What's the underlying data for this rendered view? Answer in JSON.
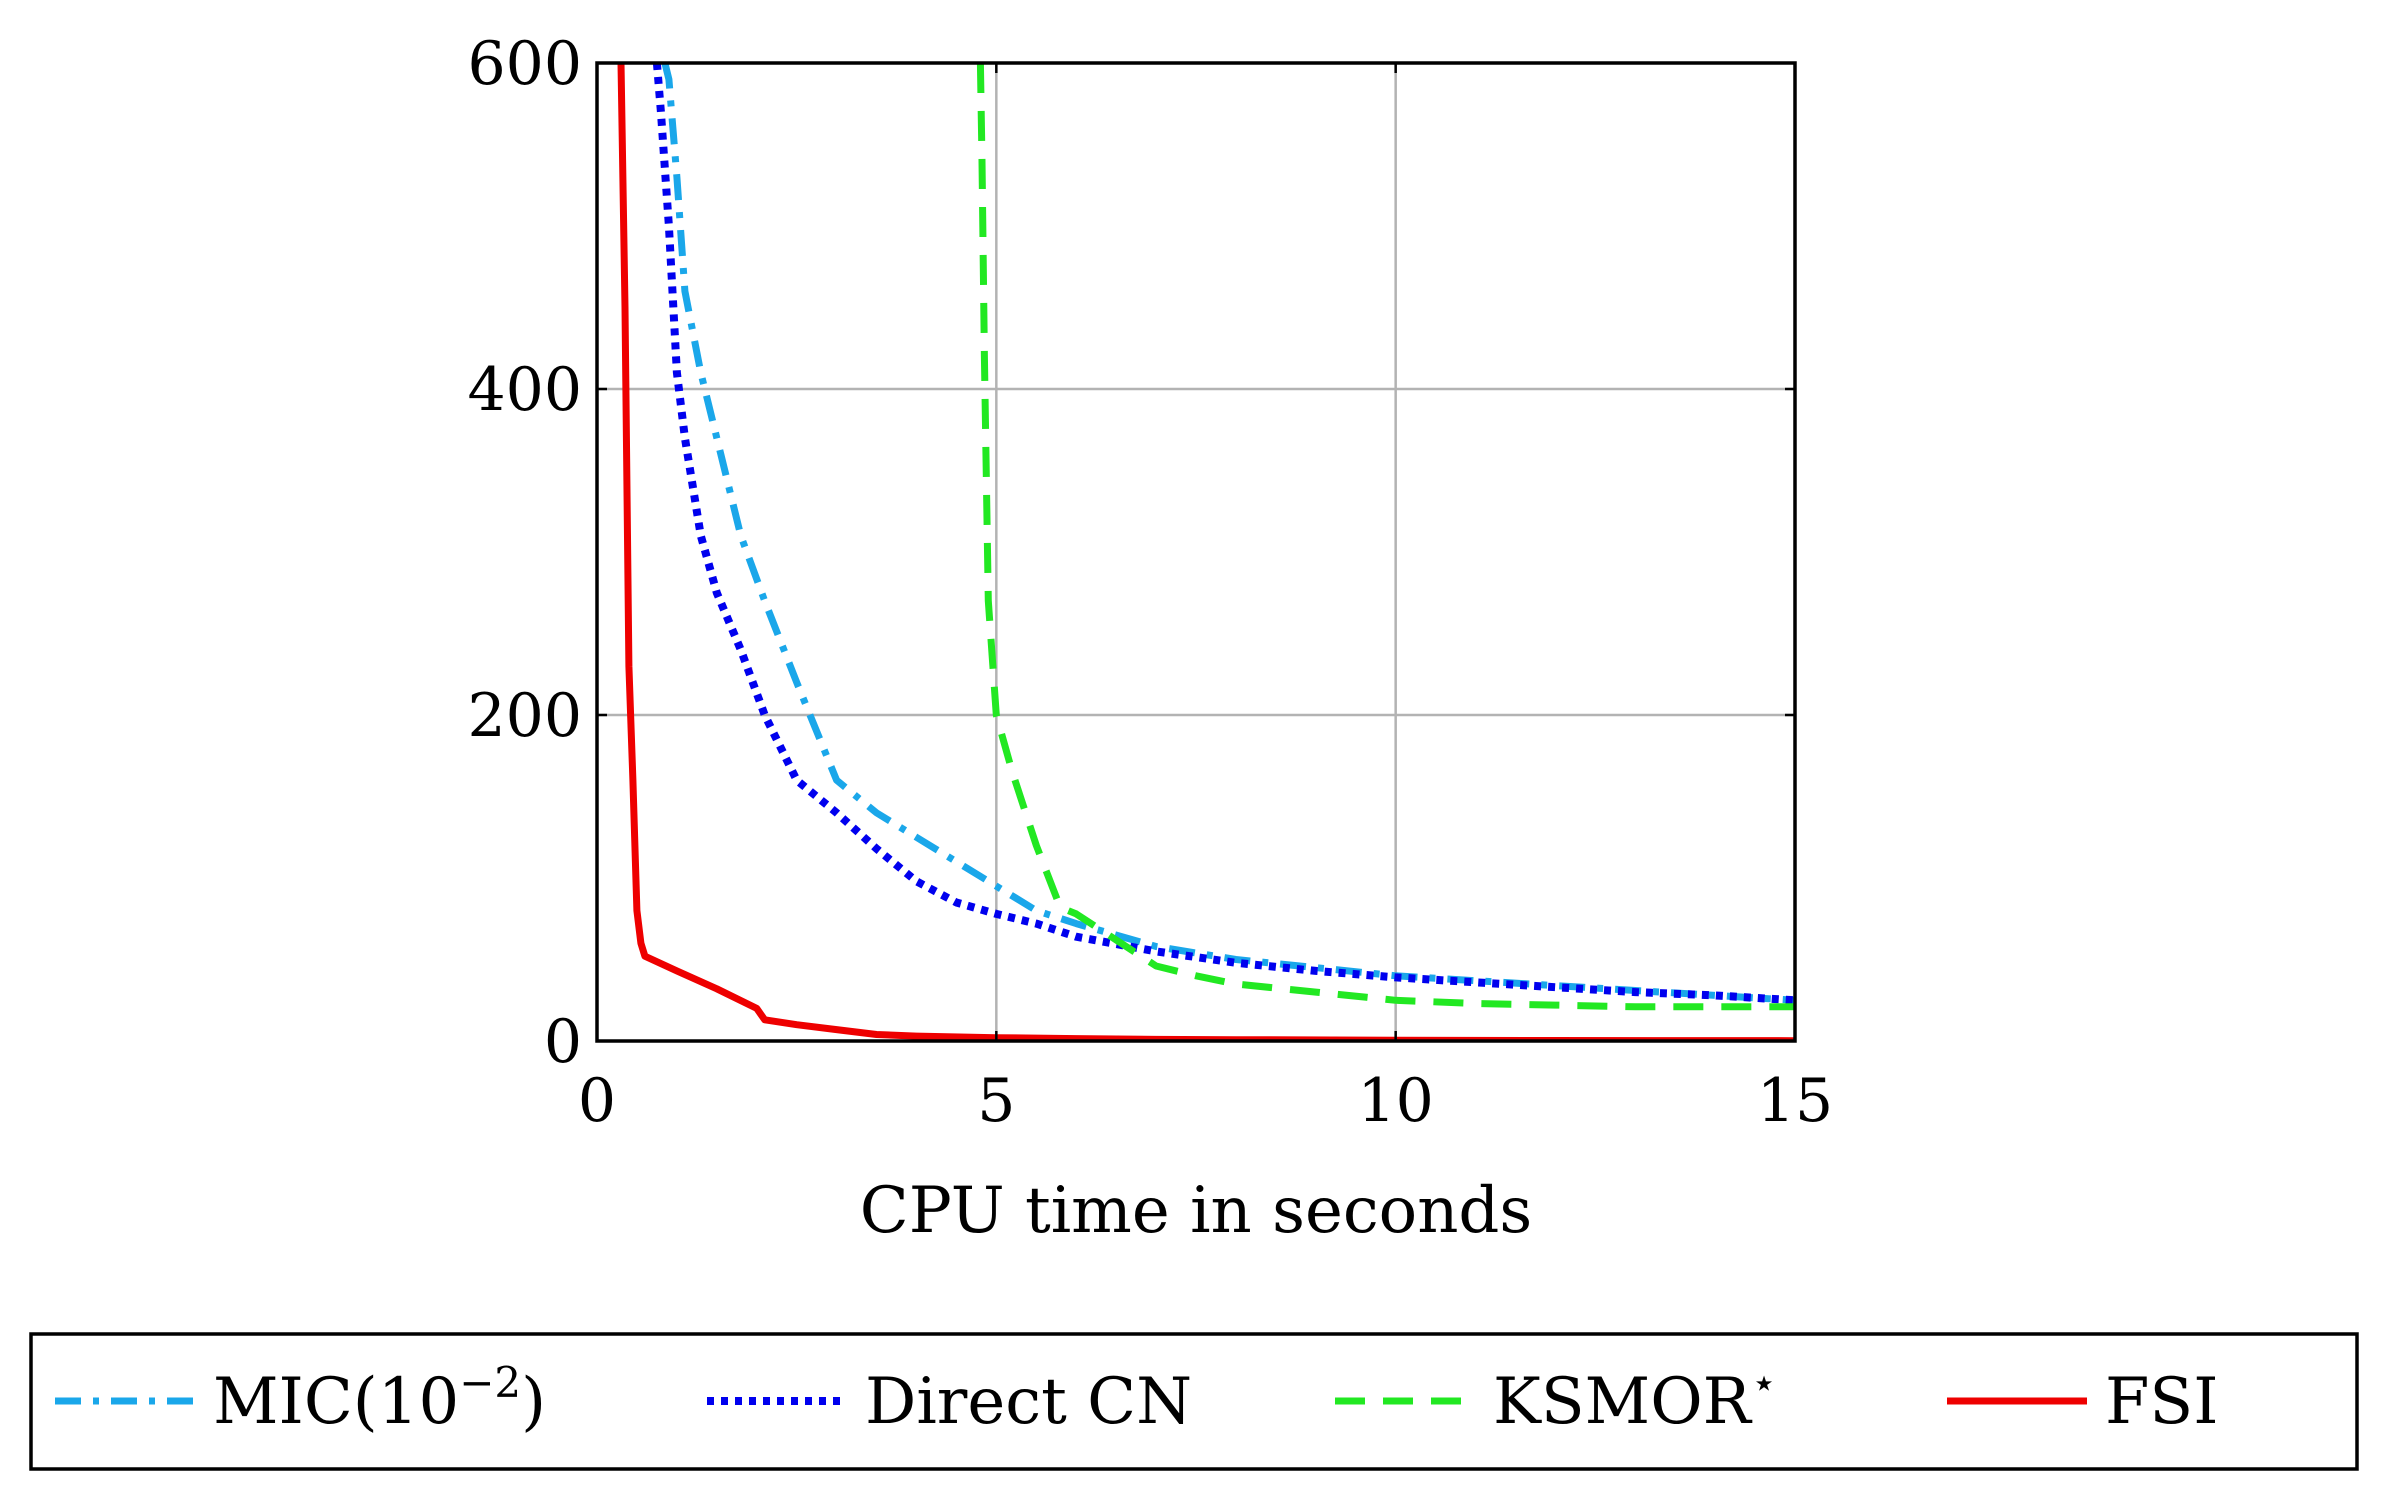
{
  "chart_data": {
    "type": "line",
    "title": "",
    "xlabel": "CPU time in seconds",
    "ylabel": "",
    "xlim": [
      0,
      15
    ],
    "ylim": [
      0,
      600
    ],
    "xticks": [
      0,
      5,
      10,
      15
    ],
    "yticks": [
      0,
      200,
      400,
      600
    ],
    "xtick_labels": [
      "0",
      "5",
      "10",
      "15"
    ],
    "ytick_labels": [
      "0",
      "200",
      "400",
      "600"
    ],
    "grid": true,
    "legend_position": "bottom",
    "series": [
      {
        "name": "MIC(10",
        "name_sup": "−2",
        "name_suffix": ")",
        "color": "#1aa7ea",
        "style": "dashdot",
        "x": [
          0.85,
          0.9,
          1.0,
          1.1,
          1.3,
          1.5,
          1.8,
          2.1,
          2.5,
          3.0,
          3.5,
          4.0,
          4.5,
          5.0,
          5.5,
          6.0,
          7.0,
          8.0,
          9.0,
          10.0,
          11.0,
          12.0,
          13.0,
          14.0,
          15.0
        ],
        "y": [
          600,
          590,
          530,
          460,
          410,
          370,
          310,
          270,
          220,
          160,
          140,
          125,
          110,
          95,
          80,
          72,
          58,
          50,
          45,
          40,
          37,
          34,
          31,
          28,
          25
        ]
      },
      {
        "name": "Direct CN",
        "color": "#0000ee",
        "style": "dotted",
        "x": [
          0.75,
          0.8,
          0.9,
          1.0,
          1.1,
          1.3,
          1.5,
          1.8,
          2.1,
          2.5,
          3.0,
          3.5,
          4.0,
          4.5,
          5.0,
          5.5,
          6.0,
          7.0,
          8.0,
          9.0,
          10.0,
          11.0,
          12.0,
          13.0,
          14.0,
          15.0
        ],
        "y": [
          600,
          570,
          500,
          410,
          370,
          310,
          275,
          240,
          200,
          160,
          140,
          118,
          98,
          85,
          78,
          72,
          64,
          55,
          48,
          43,
          39,
          36,
          33,
          30,
          28,
          25
        ]
      },
      {
        "name": "KSMOR",
        "name_sup": "⋆",
        "name_suffix": "",
        "color": "#22e822",
        "style": "dashed",
        "x": [
          4.8,
          4.82,
          4.85,
          4.9,
          5.0,
          5.2,
          5.5,
          5.8,
          6.0,
          6.5,
          7.0,
          7.5,
          8.0,
          9.0,
          10.0,
          11.0,
          12.0,
          13.0,
          14.0,
          15.0
        ],
        "y": [
          600,
          540,
          420,
          270,
          200,
          165,
          120,
          82,
          78,
          62,
          46,
          40,
          35,
          30,
          25,
          23,
          22,
          21,
          21,
          21
        ]
      },
      {
        "name": "FSI",
        "color": "#ee0000",
        "style": "solid",
        "x": [
          0.3,
          0.35,
          0.4,
          0.45,
          0.5,
          0.55,
          0.6,
          1.0,
          1.5,
          2.0,
          2.1,
          2.5,
          3.0,
          3.5,
          4.0,
          5.0,
          6.0,
          7.0,
          8.0,
          10.0,
          12.0,
          15.0
        ],
        "y": [
          600,
          450,
          230,
          160,
          80,
          60,
          52,
          43,
          32,
          20,
          13,
          10,
          7,
          4,
          3,
          2,
          1.5,
          1,
          0.8,
          0.5,
          0.3,
          0.2
        ]
      }
    ]
  }
}
